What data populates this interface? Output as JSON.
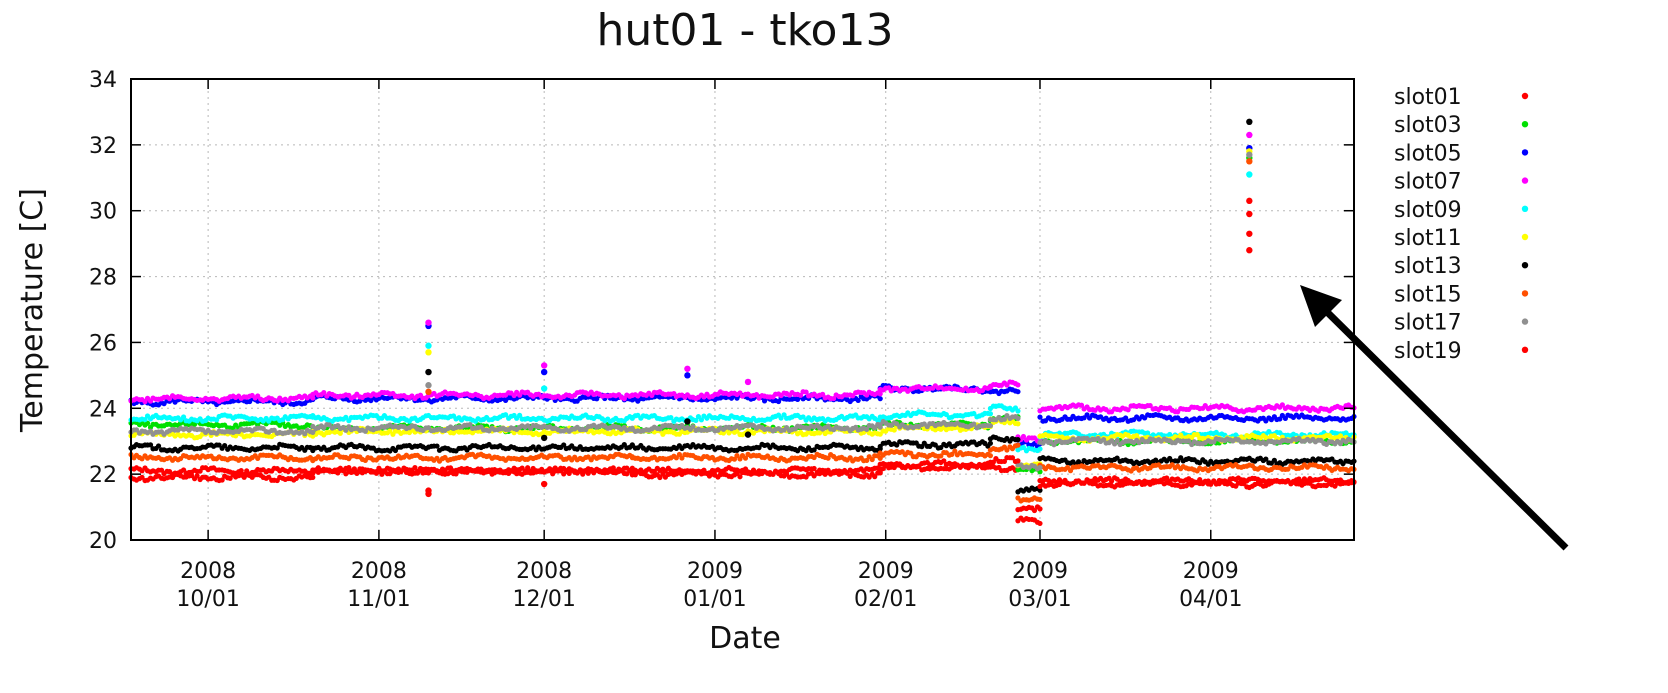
{
  "chart_data": {
    "type": "scatter",
    "title": "hut01 - tko13",
    "xlabel": "Date",
    "ylabel": "Temperature [C]",
    "ylim": [
      20,
      34
    ],
    "xlim": [
      "2008-09-17",
      "2009-04-27"
    ],
    "grid": true,
    "legend_position": "right",
    "y_ticks": [
      "20",
      "22",
      "24",
      "26",
      "28",
      "30",
      "32",
      "34"
    ],
    "x_ticks": [
      {
        "date": "2008-10-01",
        "line1": "2008",
        "line2": "10/01"
      },
      {
        "date": "2008-11-01",
        "line1": "2008",
        "line2": "11/01"
      },
      {
        "date": "2008-12-01",
        "line1": "2008",
        "line2": "12/01"
      },
      {
        "date": "2009-01-01",
        "line1": "2009",
        "line2": "01/01"
      },
      {
        "date": "2009-02-01",
        "line1": "2009",
        "line2": "02/01"
      },
      {
        "date": "2009-03-01",
        "line1": "2009",
        "line2": "03/01"
      },
      {
        "date": "2009-04-01",
        "line1": "2009",
        "line2": "04/01"
      }
    ],
    "segments": [
      {
        "start": "2008-09-17",
        "end": "2008-10-20"
      },
      {
        "start": "2008-10-20",
        "end": "2008-12-17"
      },
      {
        "start": "2008-12-17",
        "end": "2009-01-31"
      },
      {
        "start": "2009-01-31",
        "end": "2009-02-20"
      },
      {
        "start": "2009-02-20",
        "end": "2009-02-25"
      },
      {
        "start": "2009-02-25",
        "end": "2009-03-01"
      },
      {
        "start": "2009-03-01",
        "end": "2009-04-27"
      }
    ],
    "series": [
      {
        "name": "slot01",
        "color": "#ff0000",
        "levels": [
          22.1,
          22.1,
          22.0,
          22.2,
          22.2,
          20.9,
          21.8
        ],
        "spikes": [
          {
            "date": "2008-11-10",
            "value": 21.5
          },
          {
            "date": "2008-12-01",
            "value": 21.7
          },
          {
            "date": "2009-04-08",
            "value": 30.3
          }
        ]
      },
      {
        "name": "slot03",
        "color": "#00e000",
        "levels": [
          23.5,
          23.4,
          23.4,
          23.5,
          23.7,
          22.1,
          23.0
        ],
        "spikes": [
          {
            "date": "2009-04-08",
            "value": 31.6
          }
        ]
      },
      {
        "name": "slot05",
        "color": "#0000ff",
        "levels": [
          24.2,
          24.3,
          24.3,
          24.6,
          24.5,
          22.9,
          23.7
        ],
        "spikes": [
          {
            "date": "2008-11-10",
            "value": 26.5
          },
          {
            "date": "2008-12-01",
            "value": 25.1
          },
          {
            "date": "2008-12-27",
            "value": 25.0
          },
          {
            "date": "2009-04-08",
            "value": 31.9
          }
        ]
      },
      {
        "name": "slot07",
        "color": "#ff00ff",
        "levels": [
          24.3,
          24.4,
          24.4,
          24.6,
          24.7,
          23.1,
          24.0
        ],
        "spikes": [
          {
            "date": "2008-11-10",
            "value": 26.6
          },
          {
            "date": "2008-12-01",
            "value": 25.3
          },
          {
            "date": "2008-12-27",
            "value": 25.2
          },
          {
            "date": "2009-01-07",
            "value": 24.8
          },
          {
            "date": "2009-04-08",
            "value": 32.3
          }
        ]
      },
      {
        "name": "slot09",
        "color": "#00ffff",
        "levels": [
          23.7,
          23.7,
          23.7,
          23.8,
          24.0,
          22.8,
          23.2
        ],
        "spikes": [
          {
            "date": "2008-11-10",
            "value": 25.9
          },
          {
            "date": "2008-12-01",
            "value": 24.6
          },
          {
            "date": "2009-04-08",
            "value": 31.1
          }
        ]
      },
      {
        "name": "slot11",
        "color": "#ffff00",
        "levels": [
          23.2,
          23.3,
          23.3,
          23.4,
          23.6,
          22.3,
          23.1
        ],
        "spikes": [
          {
            "date": "2008-11-10",
            "value": 25.7
          },
          {
            "date": "2009-04-08",
            "value": 31.8
          }
        ]
      },
      {
        "name": "slot13",
        "color": "#000000",
        "levels": [
          22.8,
          22.8,
          22.8,
          22.9,
          23.1,
          21.5,
          22.4
        ],
        "spikes": [
          {
            "date": "2008-11-10",
            "value": 25.1
          },
          {
            "date": "2008-12-01",
            "value": 23.1
          },
          {
            "date": "2008-12-27",
            "value": 23.6
          },
          {
            "date": "2009-01-07",
            "value": 23.2
          },
          {
            "date": "2009-04-08",
            "value": 32.7
          }
        ]
      },
      {
        "name": "slot15",
        "color": "#ff5000",
        "levels": [
          22.5,
          22.5,
          22.5,
          22.6,
          22.8,
          21.2,
          22.2
        ],
        "spikes": [
          {
            "date": "2008-11-10",
            "value": 24.5
          },
          {
            "date": "2009-04-08",
            "value": 31.5
          }
        ]
      },
      {
        "name": "slot17",
        "color": "#909090",
        "levels": [
          23.3,
          23.4,
          23.4,
          23.5,
          23.7,
          22.2,
          23.0
        ],
        "spikes": [
          {
            "date": "2008-11-10",
            "value": 24.7
          },
          {
            "date": "2009-04-08",
            "value": 31.7
          }
        ]
      },
      {
        "name": "slot19",
        "color": "#ff0000",
        "levels": [
          21.9,
          22.1,
          22.1,
          22.3,
          22.4,
          20.6,
          21.7
        ],
        "spikes": [
          {
            "date": "2008-11-10",
            "value": 21.4
          },
          {
            "date": "2009-04-08",
            "value": 29.3
          }
        ]
      }
    ],
    "extra_points": [
      {
        "date": "2009-04-08",
        "value": 29.9,
        "color": "#ff0000"
      },
      {
        "date": "2009-04-08",
        "value": 28.8,
        "color": "#ff0000"
      }
    ]
  }
}
